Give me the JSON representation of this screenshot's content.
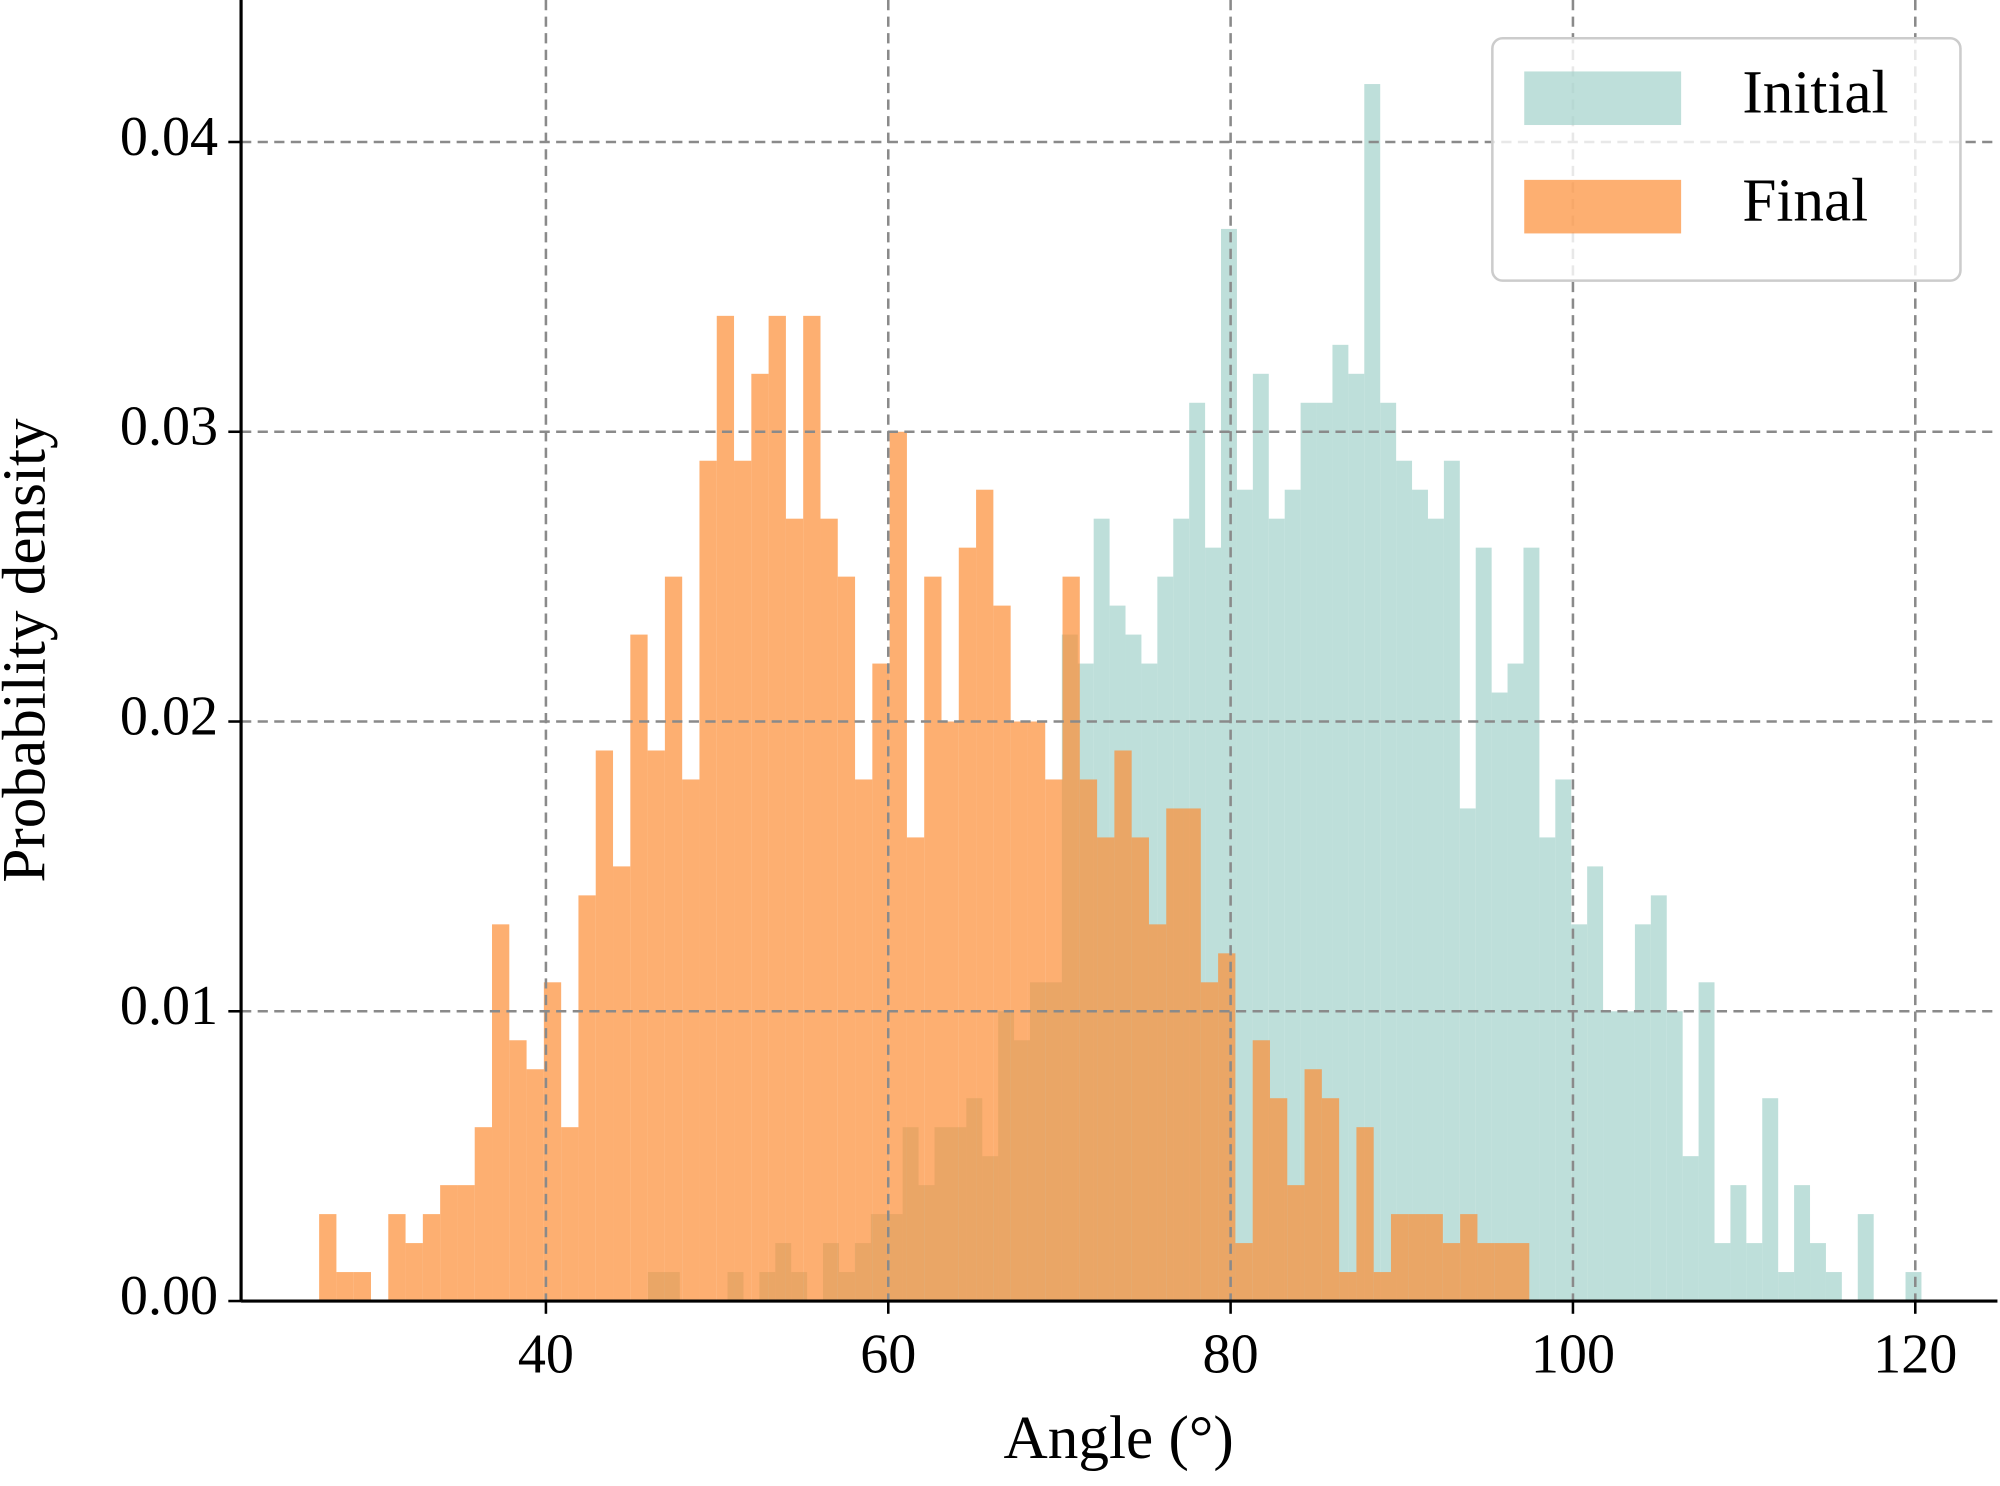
{
  "chart_data": {
    "type": "histogram",
    "xlabel": "Angle (°)",
    "ylabel": "Probability density",
    "xlim": [
      22.19,
      124.8
    ],
    "ylim": [
      0,
      0.0449
    ],
    "xticks": [
      40,
      60,
      80,
      100,
      120
    ],
    "yticks": [
      {
        "value": 0,
        "label": "0.00"
      },
      0.01,
      0.02,
      0.03,
      0.04
    ],
    "grid": true,
    "legend": "upper right",
    "series": [
      {
        "name": "Initial",
        "color": "#a3d2cb",
        "bins": [
          45.96,
          46.89,
          47.82,
          48.75,
          49.68,
          50.61,
          51.54,
          52.47,
          53.4,
          54.33,
          55.26,
          56.19,
          57.12,
          58.05,
          58.98,
          59.91,
          60.84,
          61.77,
          62.7,
          63.63,
          64.56,
          65.49,
          66.42,
          67.35,
          68.28,
          69.21,
          70.14,
          71.07,
          72,
          72.93,
          73.86,
          74.79,
          75.72,
          76.65,
          77.58,
          78.51,
          79.44,
          80.37,
          81.3,
          82.23,
          83.16,
          84.09,
          85.02,
          85.95,
          86.88,
          87.81,
          88.74,
          89.67,
          90.6,
          91.53,
          92.46,
          93.39,
          94.32,
          95.25,
          96.18,
          97.11,
          98.04,
          98.97,
          99.9,
          100.83,
          101.76,
          102.69,
          103.62,
          104.55,
          105.48,
          106.41,
          107.34,
          108.27,
          109.2,
          110.13,
          111.06,
          111.99,
          112.92,
          113.85,
          114.78,
          115.71,
          116.64,
          117.57,
          118.5,
          119.43,
          120.36
        ],
        "values": [
          0.001,
          0.001,
          0,
          0,
          0,
          0.001,
          0,
          0.001,
          0.002,
          0.001,
          0,
          0.002,
          0.001,
          0.002,
          0.003,
          0.003,
          0.006,
          0.004,
          0.006,
          0.006,
          0.007,
          0.005,
          0.01,
          0.009,
          0.011,
          0.011,
          0.023,
          0.022,
          0.027,
          0.024,
          0.023,
          0.022,
          0.025,
          0.027,
          0.031,
          0.026,
          0.037,
          0.028,
          0.032,
          0.027,
          0.028,
          0.031,
          0.031,
          0.033,
          0.032,
          0.042,
          0.031,
          0.029,
          0.028,
          0.027,
          0.029,
          0.017,
          0.026,
          0.021,
          0.022,
          0.026,
          0.016,
          0.018,
          0.013,
          0.015,
          0.01,
          0.01,
          0.013,
          0.014,
          0.01,
          0.005,
          0.011,
          0.002,
          0.004,
          0.002,
          0.007,
          0.001,
          0.004,
          0.002,
          0.001,
          0,
          0.003,
          0,
          0,
          0.001
        ]
      },
      {
        "name": "Final",
        "color": "#fc8d35",
        "bins": [
          26.75,
          27.76,
          28.77,
          29.78,
          30.79,
          31.8,
          32.81,
          33.82,
          34.83,
          35.84,
          36.85,
          37.86,
          38.87,
          39.88,
          40.89,
          41.9,
          42.91,
          43.92,
          44.93,
          45.94,
          46.95,
          47.96,
          48.97,
          49.98,
          50.99,
          52,
          53.01,
          54.02,
          55.03,
          56.04,
          57.05,
          58.06,
          59.07,
          60.08,
          61.09,
          62.1,
          63.11,
          64.12,
          65.13,
          66.14,
          67.15,
          68.16,
          69.17,
          70.18,
          71.19,
          72.2,
          73.21,
          74.22,
          75.23,
          76.24,
          77.25,
          78.26,
          79.27,
          80.28,
          81.29,
          82.3,
          83.31,
          84.32,
          85.33,
          86.34,
          87.35,
          88.36,
          89.37,
          90.38,
          91.39,
          92.4,
          93.41,
          94.42,
          95.43,
          96.44,
          97.45
        ],
        "values": [
          0.003,
          0.001,
          0.001,
          0,
          0.003,
          0.002,
          0.003,
          0.004,
          0.004,
          0.006,
          0.013,
          0.009,
          0.008,
          0.011,
          0.006,
          0.014,
          0.019,
          0.015,
          0.023,
          0.019,
          0.025,
          0.018,
          0.029,
          0.034,
          0.029,
          0.032,
          0.034,
          0.027,
          0.034,
          0.027,
          0.025,
          0.018,
          0.022,
          0.03,
          0.016,
          0.025,
          0.02,
          0.026,
          0.028,
          0.024,
          0.02,
          0.02,
          0.018,
          0.025,
          0.018,
          0.016,
          0.019,
          0.016,
          0.013,
          0.017,
          0.017,
          0.011,
          0.012,
          0.002,
          0.009,
          0.007,
          0.004,
          0.008,
          0.007,
          0.001,
          0.006,
          0.001,
          0.003,
          0.003,
          0.003,
          0.002,
          0.003,
          0.002,
          0.002,
          0.002
        ]
      }
    ]
  }
}
